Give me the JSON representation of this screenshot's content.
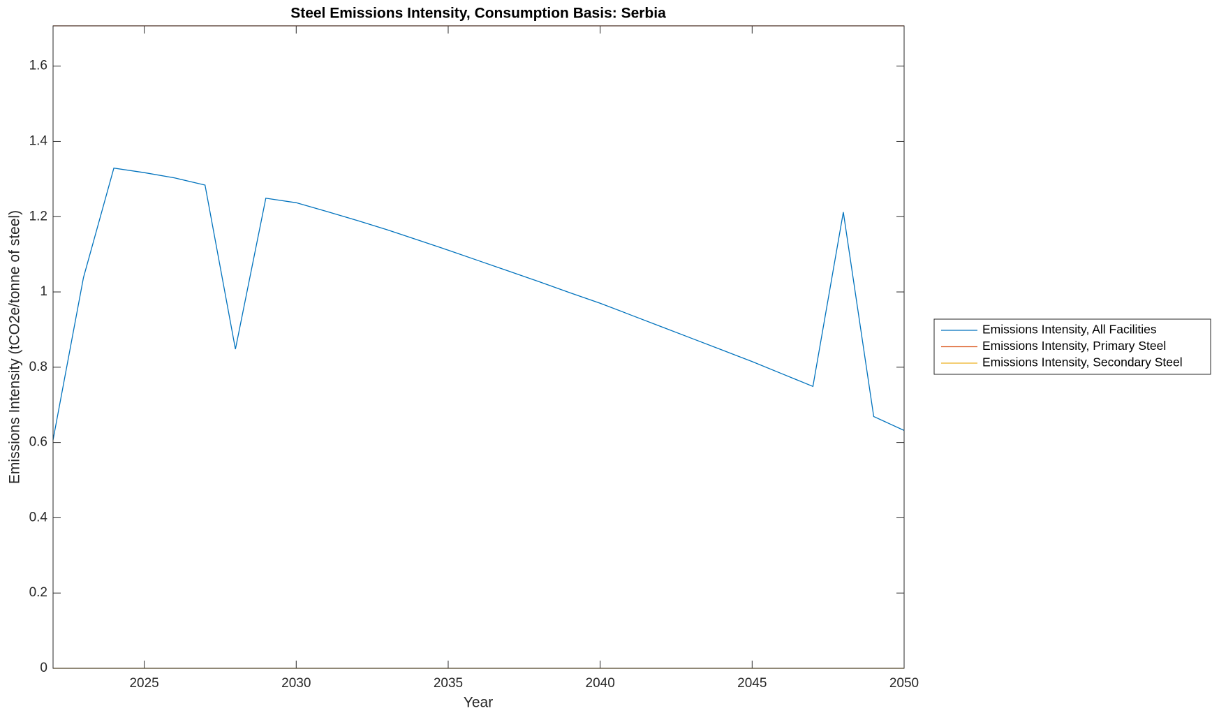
{
  "chart_data": {
    "type": "line",
    "title": "Steel Emissions Intensity, Consumption Basis: Serbia",
    "xlabel": "Year",
    "ylabel": "Emissions Intensity (tCO2e/tonne of steel)",
    "x": [
      2022,
      2023,
      2024,
      2025,
      2026,
      2027,
      2028,
      2029,
      2030,
      2031,
      2032,
      2033,
      2034,
      2035,
      2036,
      2037,
      2038,
      2039,
      2040,
      2041,
      2042,
      2043,
      2044,
      2045,
      2046,
      2047,
      2048,
      2049,
      2050
    ],
    "series": [
      {
        "name": "Emissions Intensity, All Facilities",
        "color": "#0072bd",
        "values": [
          0.607,
          1.038,
          1.329,
          1.317,
          1.303,
          1.284,
          0.848,
          1.249,
          1.237,
          1.214,
          1.19,
          1.165,
          1.138,
          1.111,
          1.083,
          1.055,
          1.027,
          0.998,
          0.97,
          0.939,
          0.908,
          0.877,
          0.846,
          0.815,
          0.782,
          0.749,
          1.212,
          0.669,
          0.632
        ]
      },
      {
        "name": "Emissions Intensity, Primary Steel",
        "color": "#d95319",
        "values": [
          1.707,
          1.707,
          1.707,
          1.707,
          1.707,
          1.707,
          1.707,
          1.707,
          1.707,
          1.707,
          1.707,
          1.707,
          1.707,
          1.707,
          1.707,
          1.707,
          1.707,
          1.707,
          1.707,
          1.707,
          1.707,
          1.707,
          1.707,
          1.707,
          1.707,
          1.707,
          1.707,
          1.707,
          1.707
        ]
      },
      {
        "name": "Emissions Intensity, Secondary Steel",
        "color": "#edb120",
        "values": [
          0,
          0,
          0,
          0,
          0,
          0,
          0,
          0,
          0,
          0,
          0,
          0,
          0,
          0,
          0,
          0,
          0,
          0,
          0,
          0,
          0,
          0,
          0,
          0,
          0,
          0,
          0,
          0,
          0
        ]
      }
    ],
    "xlim": [
      2022,
      2050
    ],
    "xticks": [
      2025,
      2030,
      2035,
      2040,
      2045,
      2050
    ],
    "ylim": [
      0,
      1.707
    ],
    "yticks": [
      0,
      0.2,
      0.4,
      0.6,
      0.8,
      1,
      1.2,
      1.4,
      1.6
    ],
    "grid": false,
    "legend": "outside-right"
  }
}
